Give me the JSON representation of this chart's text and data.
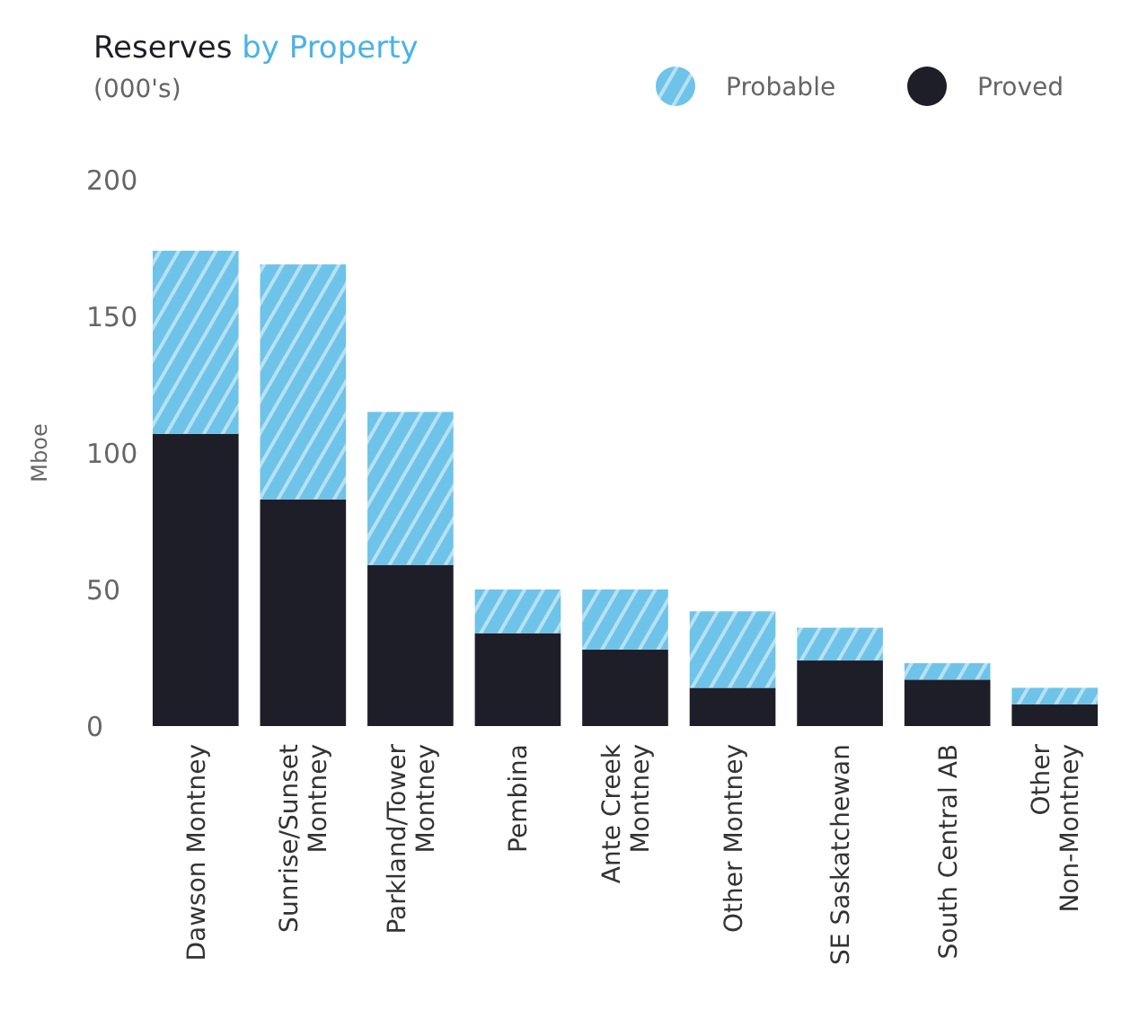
{
  "chart_data": {
    "type": "bar",
    "title": "Reserves by Property",
    "subtitle": "(000's)",
    "ylabel": "Mboe",
    "categories": [
      "Dawson Montney",
      "Sunrise/Sunset\nMontney",
      "Parkland/Tower\nMontney",
      "Pembina",
      "Ante Creek\nMontney",
      "Other Montney",
      "SE Saskatchewan",
      "South Central AB",
      "Other\nNon-Montney"
    ],
    "stacked": true,
    "ylim": [
      0,
      200
    ],
    "yticks": [
      0,
      50,
      100,
      150,
      200
    ],
    "grid": false,
    "legend": "top right",
    "series": [
      {
        "name": "Proved",
        "color": "#1e1e28",
        "values": [
          107,
          83,
          59,
          34,
          28,
          14,
          24,
          17,
          8
        ]
      },
      {
        "name": "Probable",
        "color": "#6ec3e8",
        "values": [
          67,
          86,
          56,
          16,
          22,
          28,
          12,
          6,
          6
        ]
      }
    ]
  }
}
